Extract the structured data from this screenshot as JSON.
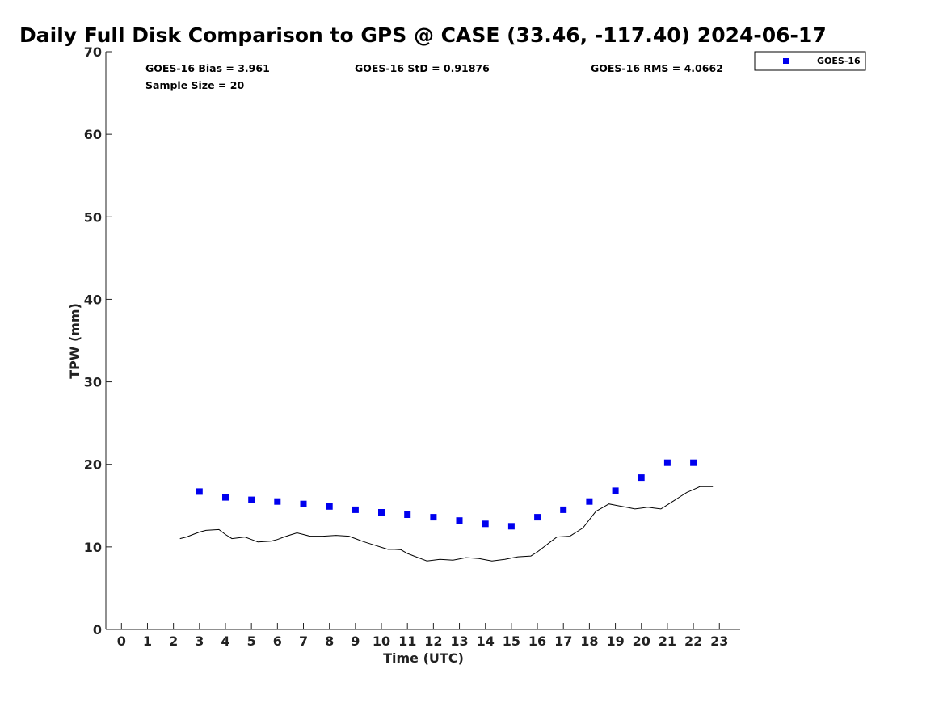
{
  "chart_data": {
    "type": "scatter",
    "title": "Daily Full Disk Comparison to GPS @ CASE (33.46, -117.40) 2024-06-17",
    "xlabel": "Time (UTC)",
    "ylabel": "TPW (mm)",
    "xlim": [
      -0.6,
      23.8
    ],
    "ylim": [
      0,
      70
    ],
    "xticks": [
      0,
      1,
      2,
      3,
      4,
      5,
      6,
      7,
      8,
      9,
      10,
      11,
      12,
      13,
      14,
      15,
      16,
      17,
      18,
      19,
      20,
      21,
      22,
      23
    ],
    "yticks": [
      0,
      10,
      20,
      30,
      40,
      50,
      60,
      70
    ],
    "grid": false,
    "legend_position": "top-right",
    "stats": {
      "bias": "GOES-16 Bias = 3.961",
      "std": "GOES-16 StD = 0.91876",
      "rms": "GOES-16 RMS = 4.0662",
      "sample": "Sample Size = 20"
    },
    "series": [
      {
        "name": "GOES-16",
        "kind": "markers",
        "marker": "square",
        "color": "#0000ee",
        "x": [
          3,
          4,
          5,
          6,
          7,
          8,
          9,
          10,
          11,
          12,
          13,
          14,
          15,
          16,
          17,
          18,
          19,
          20,
          21,
          22
        ],
        "y": [
          16.7,
          16.0,
          15.7,
          15.5,
          15.2,
          14.9,
          14.5,
          14.2,
          13.9,
          13.6,
          13.2,
          12.8,
          12.5,
          13.6,
          14.5,
          15.5,
          16.8,
          18.4,
          20.2,
          20.2
        ]
      },
      {
        "kind": "line",
        "color": "#000000",
        "x": [
          2.25,
          2.5,
          2.75,
          3.0,
          3.25,
          3.5,
          3.75,
          4.0,
          4.25,
          4.5,
          4.75,
          5.0,
          5.25,
          5.5,
          5.75,
          6.0,
          6.25,
          6.5,
          6.75,
          7.0,
          7.25,
          7.5,
          7.75,
          8.0,
          8.25,
          8.5,
          8.75,
          9.0,
          9.25,
          9.5,
          9.75,
          10.0,
          10.25,
          10.5,
          10.75,
          11.0,
          11.25,
          11.5,
          11.75,
          12.0,
          12.25,
          12.5,
          12.75,
          13.0,
          13.25,
          13.5,
          13.75,
          14.0,
          14.25,
          14.5,
          14.75,
          15.0,
          15.25,
          15.5,
          15.75,
          16.0,
          16.25,
          16.5,
          16.75,
          17.0,
          17.25,
          17.5,
          17.75,
          18.0,
          18.25,
          18.5,
          18.75,
          19.0,
          19.25,
          19.5,
          19.75,
          20.0,
          20.25,
          20.5,
          20.75,
          21.0,
          21.25,
          21.5,
          21.75,
          22.0,
          22.25,
          22.5,
          22.75
        ],
        "y": [
          11.0,
          11.2,
          11.5,
          11.8,
          12.0,
          12.05,
          12.1,
          11.5,
          11.0,
          11.1,
          11.2,
          10.9,
          10.6,
          10.65,
          10.7,
          10.9,
          11.2,
          11.45,
          11.7,
          11.5,
          11.3,
          11.3,
          11.3,
          11.35,
          11.4,
          11.35,
          11.3,
          11.0,
          10.7,
          10.45,
          10.2,
          9.95,
          9.7,
          9.7,
          9.65,
          9.2,
          8.9,
          8.6,
          8.3,
          8.4,
          8.5,
          8.45,
          8.4,
          8.55,
          8.7,
          8.65,
          8.6,
          8.45,
          8.3,
          8.4,
          8.5,
          8.65,
          8.8,
          8.85,
          8.9,
          9.4,
          10.0,
          10.6,
          11.2,
          11.25,
          11.3,
          11.8,
          12.3,
          13.3,
          14.3,
          14.75,
          15.2,
          15.05,
          14.9,
          14.75,
          14.6,
          14.7,
          14.8,
          14.7,
          14.6,
          15.1,
          15.6,
          16.1,
          16.6,
          16.95,
          17.3,
          17.3,
          17.3
        ]
      }
    ]
  }
}
